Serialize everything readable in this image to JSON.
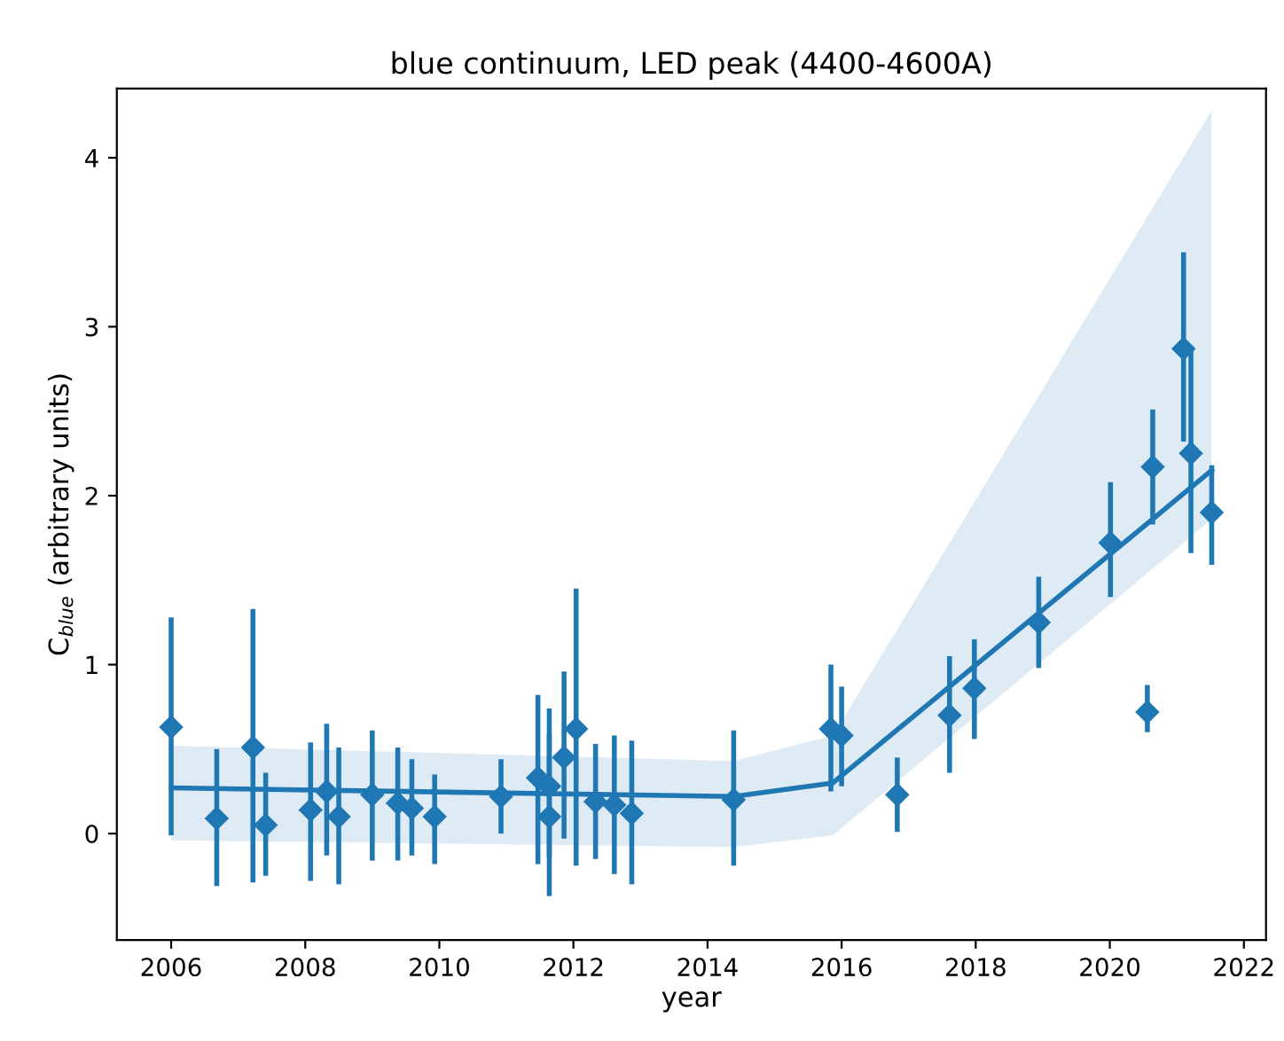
{
  "chart_data": {
    "type": "scatter",
    "title": "blue continuum, LED peak (4400-4600A)",
    "xlabel": "year",
    "ylabel": "C$_{blue}$ (arbitrary units)",
    "xlim": [
      2005.19,
      2022.33
    ],
    "xticks": [
      2006,
      2008,
      2010,
      2012,
      2014,
      2016,
      2018,
      2020,
      2022
    ],
    "ylim": [
      -0.63,
      4.41
    ],
    "yticks": [
      0,
      1,
      2,
      3,
      4
    ],
    "grid": false,
    "series": [
      {
        "type": "line",
        "color": "#1f77b4",
        "marker": "none",
        "line_style": "solid",
        "x": [
          2006.0,
          2014.39,
          2015.87,
          2021.52
        ],
        "values": [
          0.27,
          0.22,
          0.3,
          2.15
        ],
        "lower": [
          -0.04,
          -0.08,
          -0.01,
          1.86
        ],
        "upper": [
          0.52,
          0.43,
          0.58,
          4.28
        ]
      },
      {
        "color": "#1f77b4",
        "marker": "diamond",
        "x": [
          2006.0,
          2006.68,
          2007.22,
          2007.41,
          2008.08,
          2008.32,
          2008.5,
          2009.0,
          2009.38,
          2009.59,
          2009.93,
          2010.92,
          2011.47,
          2011.64,
          2011.64,
          2011.86,
          2012.04,
          2012.33,
          2012.61,
          2012.87,
          2014.39,
          2015.84,
          2016.0,
          2016.83,
          2017.61,
          2017.98,
          2018.94,
          2020.01,
          2020.56,
          2020.64,
          2021.1,
          2021.21,
          2021.52
        ],
        "values": [
          0.63,
          0.09,
          0.51,
          0.05,
          0.14,
          0.25,
          0.1,
          0.23,
          0.18,
          0.15,
          0.1,
          0.22,
          0.33,
          0.28,
          0.1,
          0.45,
          0.62,
          0.19,
          0.17,
          0.12,
          0.2,
          0.62,
          0.58,
          0.23,
          0.7,
          0.86,
          1.25,
          1.72,
          0.72,
          2.17,
          2.87,
          2.25,
          1.9
        ],
        "errors": [
          [
            -0.01,
            1.28
          ],
          [
            -0.31,
            0.5
          ],
          [
            -0.29,
            1.33
          ],
          [
            -0.25,
            0.36
          ],
          [
            -0.28,
            0.54
          ],
          [
            -0.13,
            0.65
          ],
          [
            -0.3,
            0.51
          ],
          [
            -0.16,
            0.61
          ],
          [
            -0.16,
            0.51
          ],
          [
            -0.13,
            0.44
          ],
          [
            -0.18,
            0.35
          ],
          [
            0.0,
            0.44
          ],
          [
            -0.18,
            0.82
          ],
          [
            -0.14,
            0.74
          ],
          [
            -0.37,
            0.59
          ],
          [
            -0.03,
            0.96
          ],
          [
            -0.19,
            1.45
          ],
          [
            -0.15,
            0.53
          ],
          [
            -0.24,
            0.58
          ],
          [
            -0.3,
            0.55
          ],
          [
            -0.19,
            0.61
          ],
          [
            0.25,
            1.0
          ],
          [
            0.28,
            0.87
          ],
          [
            0.01,
            0.45
          ],
          [
            0.36,
            1.05
          ],
          [
            0.56,
            1.15
          ],
          [
            0.98,
            1.52
          ],
          [
            1.4,
            2.08
          ],
          [
            0.6,
            0.88
          ],
          [
            1.83,
            2.51
          ],
          [
            2.32,
            3.44
          ],
          [
            1.66,
            2.87
          ],
          [
            1.59,
            2.18
          ]
        ]
      }
    ]
  }
}
